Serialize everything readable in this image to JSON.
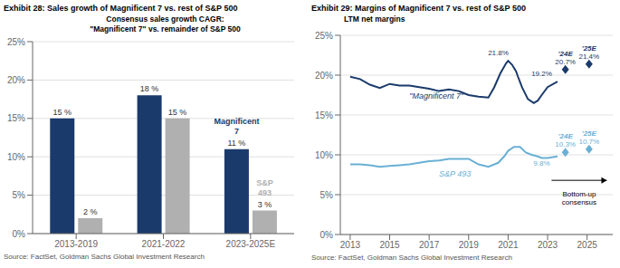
{
  "chart_data": [
    {
      "type": "bar",
      "title": "Exhibit 28: Sales growth of Magnificent 7 vs. rest of S&P 500",
      "subtitle": [
        "Consensus sales growth CAGR:",
        "\"Magnificent 7\" vs. remainder of S&P 500"
      ],
      "source": "Source: FactSet, Goldman Sachs Global Investment Research",
      "categories": [
        "2013-2019",
        "2021-2022",
        "2023-2025E"
      ],
      "series": [
        {
          "name": "Magnificent\n7",
          "color": "#1a3a6b",
          "values": [
            15,
            18,
            11
          ],
          "value_labels": [
            "15 %",
            "18 %",
            "11 %"
          ]
        },
        {
          "name": "S&P\n493",
          "color": "#b0b0b0",
          "values": [
            2,
            15,
            3
          ],
          "value_labels": [
            "2 %",
            "15 %",
            "3 %"
          ]
        }
      ],
      "ylim": [
        0,
        25
      ],
      "yticks": [
        {
          "value": 0,
          "label": "0%"
        },
        {
          "value": 5,
          "label": "5%"
        },
        {
          "value": 10,
          "label": "10%"
        },
        {
          "value": 15,
          "label": "15%"
        },
        {
          "value": 20,
          "label": "20%"
        },
        {
          "value": 25,
          "label": "25%"
        }
      ],
      "grid": true,
      "data_labels": true
    },
    {
      "type": "line",
      "title": "Exhibit 29: Margins of Magnificent 7 vs. rest of S&P 500",
      "subtitle": "LTM net margins",
      "source": "Source: FactSet, Goldman Sachs Global Investment Research",
      "series": [
        {
          "name": "\"Magnificent 7\"",
          "color": "#1a3a6b",
          "x": [
            2013,
            2013.5,
            2014,
            2014.5,
            2015,
            2015.5,
            2016,
            2016.5,
            2017,
            2017.5,
            2018,
            2018.5,
            2019,
            2019.5,
            2020,
            2020.3,
            2020.6,
            2020.9,
            2021.0,
            2021.2,
            2021.4,
            2021.5,
            2021.7,
            2022.0,
            2022.3,
            2022.5,
            2022.7,
            2023.0,
            2023.5
          ],
          "values": [
            19.8,
            19.5,
            18.8,
            18.4,
            18.9,
            18.7,
            18.7,
            18.5,
            18.3,
            18.0,
            18.2,
            18.0,
            17.5,
            17.3,
            17.2,
            18.5,
            20.2,
            21.5,
            21.8,
            21.3,
            20.5,
            19.8,
            18.5,
            17.0,
            16.5,
            16.8,
            17.5,
            18.5,
            19.2
          ],
          "label_position": {
            "x": 2016.0,
            "y": 17.0
          }
        },
        {
          "name": "S&P 493",
          "color": "#6ab0d4",
          "x": [
            2013,
            2013.5,
            2014,
            2014.5,
            2015,
            2015.5,
            2016,
            2016.5,
            2017,
            2017.5,
            2018,
            2018.5,
            2019,
            2019.5,
            2020,
            2020.5,
            2020.8,
            2021.0,
            2021.3,
            2021.6,
            2021.9,
            2022.2,
            2022.5,
            2022.7,
            2023.0,
            2023.5
          ],
          "values": [
            8.8,
            8.8,
            8.7,
            8.5,
            8.6,
            8.7,
            8.8,
            9.0,
            9.2,
            9.3,
            9.5,
            9.5,
            9.5,
            8.8,
            8.5,
            9.0,
            9.8,
            10.5,
            11.0,
            11.0,
            10.3,
            10.0,
            9.8,
            9.6,
            9.6,
            9.8
          ],
          "label_position": {
            "x": 2017.5,
            "y": 7.3
          }
        }
      ],
      "xlim": [
        2012.5,
        2026.3
      ],
      "xticks": [
        2013,
        2015,
        2017,
        2019,
        2021,
        2023,
        2025
      ],
      "ylim": [
        0,
        25
      ],
      "yticks": [
        {
          "value": 0,
          "label": "0%"
        },
        {
          "value": 5,
          "label": "5%"
        },
        {
          "value": 10,
          "label": "10%"
        },
        {
          "value": 15,
          "label": "15%"
        },
        {
          "value": 20,
          "label": "20%"
        },
        {
          "value": 25,
          "label": "25%"
        }
      ],
      "grid": true,
      "annotations": [
        {
          "text": "21.8%",
          "x": 2020.5,
          "y": 21.8,
          "color": "#1a3a6b",
          "position": "above"
        },
        {
          "text": "19.2%",
          "x": 2022.7,
          "y": 19.2,
          "color": "#1a3a6b",
          "position": "above"
        },
        {
          "text": "9.8%",
          "x": 2022.7,
          "y": 9.8,
          "color": "#6ab0d4",
          "position": "below"
        },
        {
          "tag": "'24E",
          "text": "20.7%",
          "x": 2023.9,
          "y": 20.7,
          "color": "#1a3a6b",
          "marker": "diamond",
          "position": "above"
        },
        {
          "tag": "'25E",
          "text": "21.4%",
          "x": 2025.1,
          "y": 21.4,
          "color": "#1a3a6b",
          "marker": "diamond",
          "position": "above"
        },
        {
          "tag": "'24E",
          "text": "10.3%",
          "x": 2023.9,
          "y": 10.3,
          "color": "#6ab0d4",
          "marker": "diamond",
          "position": "above"
        },
        {
          "tag": "'25E",
          "text": "10.7%",
          "x": 2025.1,
          "y": 10.7,
          "color": "#6ab0d4",
          "marker": "diamond",
          "position": "above"
        },
        {
          "text": "Bottom-up\nconsensus",
          "x": 2024.6,
          "y": 5.9,
          "position": "below",
          "arrow": {
            "x": [
              2023.2,
              2026.0
            ],
            "y": 6.8
          }
        }
      ]
    }
  ]
}
